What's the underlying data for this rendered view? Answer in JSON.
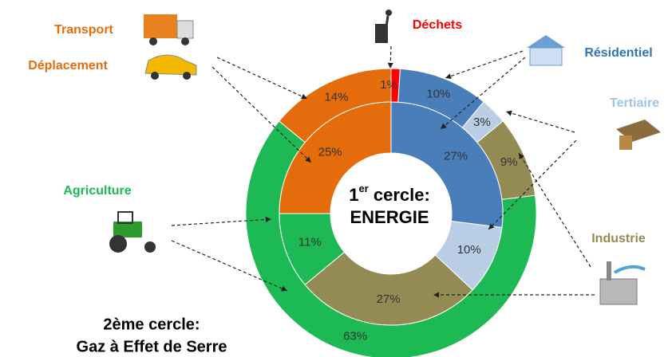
{
  "chart_data": {
    "type": "double-donut",
    "center_label": {
      "number": "1",
      "sup": "er",
      "rest": " cercle:",
      "line2": "ENERGIE"
    },
    "outer_label": {
      "line1": "2ème cercle:",
      "line2": "Gaz à Effet de Serre"
    },
    "categories": [
      "Déchets",
      "Résidentiel",
      "Tertiaire",
      "Industrie",
      "Agriculture",
      "Transport",
      "Déplacement"
    ],
    "colors": [
      "#ff0000",
      "#4a7ebb",
      "#b9cde5",
      "#948a54",
      "#1db954",
      "#e46c0a",
      "#e46c0a"
    ],
    "label_colors": [
      "#ff0000",
      "#2e75b6",
      "#9dc3e6",
      "#948a54",
      "#1db954",
      "#e46c0a",
      "#e46c0a"
    ],
    "series": [
      {
        "values": [
          1,
          10,
          3,
          9,
          63,
          14,
          null
        ],
        "value_labels": [
          "1%",
          "10%",
          "3%",
          "9%",
          "63%",
          "14%",
          null
        ]
      },
      {
        "values": [
          null,
          27,
          10,
          27,
          11,
          null,
          25
        ],
        "value_labels": [
          null,
          "27%",
          "10%",
          "27%",
          "11%",
          null,
          "25%"
        ]
      }
    ]
  }
}
